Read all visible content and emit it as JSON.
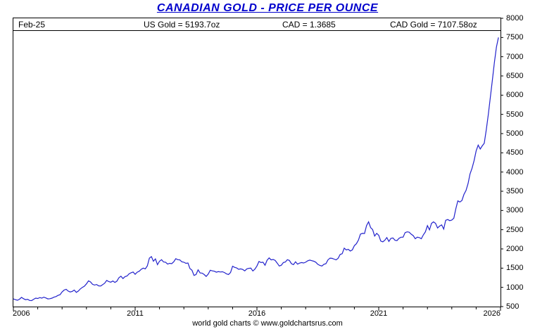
{
  "title": "CANADIAN GOLD - PRICE PER OUNCE",
  "header": {
    "date_label": "Feb-25",
    "us_gold": "US Gold = 5193.7oz",
    "cad_rate": "CAD = 1.3685",
    "cad_gold": "CAD Gold = 7107.58oz"
  },
  "footer": "world gold charts © www.goldchartsrus.com",
  "chart_data": {
    "type": "line",
    "title": "CANADIAN GOLD - PRICE PER OUNCE",
    "xlabel": "",
    "ylabel": "",
    "xlim": [
      2006,
      2026
    ],
    "ylim": [
      500,
      8000
    ],
    "x_ticks": [
      2006,
      2011,
      2016,
      2021,
      2026
    ],
    "x_minor_step": 1,
    "y_ticks": [
      500,
      1000,
      1500,
      2000,
      2500,
      3000,
      3500,
      4000,
      4500,
      5000,
      5500,
      6000,
      6500,
      7000,
      7500,
      8000
    ],
    "grid": false,
    "legend": false,
    "line_color": "#2222cc",
    "series": [
      {
        "name": "CAD Gold Price per Ounce",
        "x_start": 2006.0,
        "x_step": 0.0833333,
        "values": [
          700,
          680,
          665,
          690,
          740,
          705,
          680,
          690,
          660,
          655,
          690,
          720,
          710,
          735,
          720,
          745,
          725,
          700,
          705,
          720,
          745,
          760,
          790,
          810,
          880,
          930,
          950,
          905,
          880,
          895,
          930,
          870,
          905,
          960,
          1000,
          1030,
          1090,
          1170,
          1140,
          1080,
          1060,
          1075,
          1040,
          1035,
          1070,
          1110,
          1180,
          1150,
          1135,
          1165,
          1130,
          1160,
          1250,
          1290,
          1230,
          1280,
          1295,
          1350,
          1380,
          1400,
          1340,
          1395,
          1420,
          1470,
          1500,
          1480,
          1560,
          1760,
          1800,
          1680,
          1740,
          1590,
          1680,
          1720,
          1660,
          1655,
          1605,
          1625,
          1615,
          1665,
          1745,
          1720,
          1715,
          1665,
          1655,
          1625,
          1635,
          1490,
          1445,
          1310,
          1335,
          1455,
          1375,
          1370,
          1335,
          1285,
          1345,
          1445,
          1430,
          1420,
          1395,
          1410,
          1400,
          1405,
          1385,
          1350,
          1335,
          1385,
          1550,
          1520,
          1505,
          1470,
          1480,
          1465,
          1430,
          1480,
          1495,
          1500,
          1425,
          1475,
          1555,
          1675,
          1645,
          1655,
          1575,
          1705,
          1765,
          1715,
          1725,
          1700,
          1630,
          1555,
          1575,
          1645,
          1660,
          1720,
          1700,
          1615,
          1590,
          1665,
          1605,
          1630,
          1645,
          1635,
          1655,
          1690,
          1710,
          1695,
          1680,
          1655,
          1600,
          1570,
          1555,
          1600,
          1615,
          1715,
          1760,
          1755,
          1735,
          1715,
          1755,
          1855,
          1875,
          2020,
          1975,
          1990,
          1945,
          1975,
          2085,
          2135,
          2230,
          2385,
          2405,
          2400,
          2605,
          2705,
          2555,
          2505,
          2335,
          2405,
          2355,
          2205,
          2185,
          2225,
          2295,
          2195,
          2275,
          2285,
          2225,
          2215,
          2275,
          2305,
          2305,
          2425,
          2445,
          2435,
          2385,
          2345,
          2265,
          2305,
          2295,
          2265,
          2365,
          2445,
          2605,
          2495,
          2665,
          2705,
          2665,
          2545,
          2595,
          2625,
          2515,
          2745,
          2765,
          2735,
          2750,
          2800,
          3050,
          3250,
          3220,
          3260,
          3420,
          3520,
          3700,
          3950,
          4100,
          4300,
          4550,
          4700,
          4600,
          4680,
          4750,
          5100,
          5500,
          5950,
          6400,
          6850,
          7250,
          7500
        ]
      }
    ]
  }
}
